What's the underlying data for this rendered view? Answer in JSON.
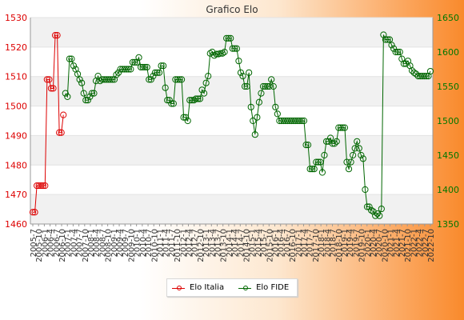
{
  "chart_data": {
    "type": "line",
    "title": "Grafico Elo",
    "x_tick_labels": [
      "2005-7",
      "2005-10",
      "2006-1",
      "2006-4",
      "2006-7",
      "2006-10",
      "2007-1",
      "2007-4",
      "2007-7",
      "2007-10",
      "2008-1",
      "2008-4",
      "2008-7",
      "2008-10",
      "2009-1",
      "2009-4",
      "2009-7",
      "2009-10",
      "2010-1",
      "2010-4",
      "2010-7",
      "2010-10",
      "2011-1",
      "2011-4",
      "2011-7",
      "2011-10",
      "2012-1",
      "2012-4",
      "2012-7",
      "2012-10",
      "2013-1",
      "2013-4",
      "2013-7",
      "2013-10",
      "2014-1",
      "2014-4",
      "2014-7",
      "2014-10",
      "2015-1",
      "2015-4",
      "2015-7",
      "2015-10",
      "2016-1",
      "2016-4",
      "2016-7",
      "2016-10",
      "2017-1",
      "2017-4",
      "2017-7",
      "2017-10",
      "2018-1",
      "2018-4",
      "2018-7",
      "2018-10",
      "2019-1",
      "2019-4",
      "2019-7",
      "2019-10",
      "2020-1",
      "2020-4",
      "2020-7",
      "2020-10",
      "2021-1",
      "2021-4",
      "2021-7",
      "2021-10",
      "2022-1",
      "2022-4",
      "2022-7",
      "2022-10"
    ],
    "y_left": {
      "min": 1460,
      "max": 1530,
      "ticks": [
        1460,
        1470,
        1480,
        1490,
        1500,
        1510,
        1520,
        1530
      ],
      "color": "#dd0000"
    },
    "y_right": {
      "min": 1350,
      "max": 1650,
      "ticks": [
        1350,
        1400,
        1450,
        1500,
        1550,
        1600,
        1650
      ],
      "color": "#007700"
    },
    "grid": true,
    "legend_position": "bottom",
    "series": [
      {
        "name": "Elo Italia",
        "axis": "left",
        "color": "#dd0000",
        "values": [
          1464,
          1464,
          1473,
          1473,
          1473,
          1473,
          1473,
          1509,
          1509,
          1506,
          1506,
          1524,
          1524,
          1491,
          1491,
          1497
        ]
      },
      {
        "name": "Elo FIDE",
        "axis": "right",
        "color": "#006600",
        "x_start": 16,
        "values": [
          1540,
          1535,
          1590,
          1590,
          1580,
          1575,
          1568,
          1560,
          1555,
          1540,
          1530,
          1530,
          1535,
          1540,
          1540,
          1558,
          1565,
          1558,
          1560,
          1560,
          1560,
          1560,
          1560,
          1560,
          1560,
          1567,
          1570,
          1575,
          1575,
          1575,
          1575,
          1575,
          1575,
          1585,
          1585,
          1585,
          1592,
          1578,
          1578,
          1578,
          1578,
          1560,
          1560,
          1565,
          1570,
          1570,
          1570,
          1580,
          1580,
          1548,
          1530,
          1530,
          1525,
          1525,
          1560,
          1560,
          1560,
          1560,
          1505,
          1505,
          1500,
          1530,
          1530,
          1530,
          1532,
          1532,
          1532,
          1545,
          1540,
          1555,
          1565,
          1598,
          1600,
          1595,
          1597,
          1597,
          1598,
          1598,
          1600,
          1620,
          1620,
          1620,
          1605,
          1605,
          1605,
          1587,
          1570,
          1565,
          1550,
          1550,
          1570,
          1520,
          1500,
          1480,
          1505,
          1527,
          1540,
          1550,
          1550,
          1550,
          1550,
          1560,
          1550,
          1520,
          1510,
          1500,
          1500,
          1500,
          1500,
          1500,
          1500,
          1500,
          1500,
          1500,
          1500,
          1500,
          1500,
          1500,
          1465,
          1465,
          1430,
          1430,
          1430,
          1440,
          1440,
          1440,
          1425,
          1450,
          1470,
          1470,
          1475,
          1467,
          1467,
          1470,
          1490,
          1490,
          1490,
          1490,
          1440,
          1430,
          1440,
          1450,
          1460,
          1470,
          1460,
          1450,
          1445,
          1400,
          1375,
          1375,
          1370,
          1368,
          1362,
          1365,
          1362,
          1372,
          1625,
          1618,
          1618,
          1618,
          1610,
          1605,
          1600,
          1600,
          1600,
          1590,
          1583,
          1583,
          1587,
          1580,
          1573,
          1570,
          1568,
          1565,
          1565,
          1565,
          1565,
          1565,
          1565,
          1572
        ]
      }
    ]
  },
  "legend": [
    {
      "label": "Elo Italia",
      "color": "#dd0000"
    },
    {
      "label": "Elo FIDE",
      "color": "#006600"
    }
  ]
}
